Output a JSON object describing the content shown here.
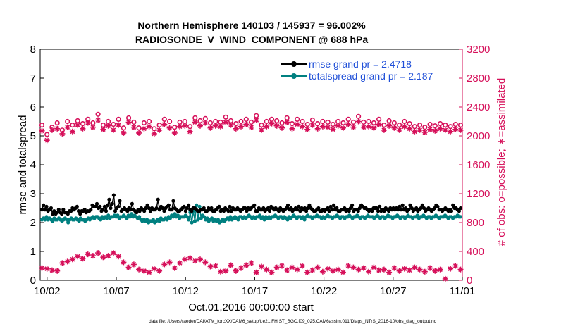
{
  "chart_data": {
    "type": "line",
    "title": [
      "Northern Hemisphere 140103 / 145937 = 96.002%",
      "RADIOSONDE_V_WIND_COMPONENT @ 688 hPa"
    ],
    "xlabel": "Oct.01,2016 00:00:00 start",
    "ylabel": "rmse and totalspread",
    "y2label": "# of obs: o=possible; ∗=assimilated",
    "footnote": "data file: /Users/raeder/DAI/ATM_forcXX/CAM6_setup/f.e21.FHIST_BGC.f09_025.CAM6assim.011/Diags_NTrS_2016-10/obs_diag_output.nc",
    "xlim": [
      1.5,
      32
    ],
    "ylim": [
      0,
      8
    ],
    "y2lim": [
      0,
      3200
    ],
    "xticks": [
      2,
      7,
      12,
      17,
      22,
      27,
      32
    ],
    "xticklabels": [
      "10/02",
      "10/07",
      "10/12",
      "10/17",
      "10/22",
      "10/27",
      "11/01"
    ],
    "yticks": [
      0,
      1,
      2,
      3,
      4,
      5,
      6,
      7,
      8
    ],
    "y2ticks": [
      0,
      400,
      800,
      1200,
      1600,
      2000,
      2400,
      2800,
      3200
    ],
    "legend_position": "top-right",
    "grid": false,
    "colors": {
      "rmse": "#000000",
      "spread": "#008080",
      "obs": "#d6105a",
      "legend_text": "#1f4fd8"
    },
    "series": [
      {
        "name": "rmse grand pr = 2.4718",
        "axis": "left",
        "marker": "filled-circle",
        "values": [
          2.45,
          2.6,
          2.45,
          2.55,
          2.4,
          2.45,
          2.5,
          2.3,
          2.4,
          2.3,
          2.35,
          2.45,
          2.35,
          2.3,
          2.45,
          2.35,
          2.35,
          2.3,
          2.4,
          2.4,
          2.5,
          2.45,
          2.5,
          2.55,
          2.4,
          2.3,
          2.4,
          2.4,
          2.45,
          2.35,
          2.4,
          2.4,
          2.45,
          2.6,
          2.55,
          2.55,
          2.65,
          2.5,
          2.55,
          2.4,
          2.45,
          2.55,
          2.4,
          2.6,
          2.8,
          2.5,
          2.65,
          2.95,
          2.4,
          2.5,
          2.55,
          2.75,
          2.4,
          2.45,
          2.5,
          2.45,
          2.4,
          2.5,
          2.45,
          2.65,
          2.45,
          2.4,
          2.35,
          2.45,
          2.4,
          2.5,
          2.45,
          2.4,
          2.5,
          2.6,
          2.5,
          2.4,
          2.5,
          2.45,
          2.45,
          2.5,
          2.8,
          2.45,
          2.55,
          2.5,
          2.4,
          2.5,
          2.55,
          2.6,
          2.45,
          2.45,
          2.75,
          2.5,
          2.45,
          2.4,
          2.4,
          2.45,
          2.5,
          2.55,
          2.4,
          2.5,
          2.6,
          2.45,
          2.4,
          2.5,
          2.5,
          2.45,
          2.4,
          2.4,
          2.45,
          2.45,
          2.5,
          2.4,
          2.4,
          2.5,
          2.45,
          2.5,
          2.4,
          2.4,
          2.45,
          2.5,
          2.55,
          2.4,
          2.45,
          2.4,
          2.5,
          2.45,
          2.4,
          2.55,
          2.4,
          2.5,
          2.45,
          2.45,
          2.5,
          2.45,
          2.4,
          2.45,
          2.5,
          2.5,
          2.4,
          2.5,
          2.45,
          2.5,
          2.55,
          2.6,
          2.4,
          2.4,
          2.5,
          2.45,
          2.45,
          2.5,
          2.4,
          2.45,
          2.5,
          2.4,
          2.55,
          2.5,
          2.45,
          2.5,
          2.45,
          2.4,
          2.5,
          2.45,
          2.4,
          2.45,
          2.5,
          2.6,
          2.45,
          2.5,
          2.4,
          2.45,
          2.5,
          2.45,
          2.55,
          2.4,
          2.5,
          2.45,
          2.5,
          2.4,
          2.5,
          2.6,
          2.5,
          2.45,
          2.4,
          2.4,
          2.45,
          2.5,
          2.4,
          2.4,
          2.45,
          2.4,
          2.45,
          2.5,
          2.4,
          2.55,
          2.45,
          2.6,
          2.45,
          2.5,
          2.4,
          2.4,
          2.45,
          2.45,
          2.5,
          2.4,
          2.45,
          2.4,
          2.5,
          2.6,
          2.4,
          2.45,
          2.45,
          2.4,
          2.5,
          2.6,
          2.55,
          2.5,
          2.5,
          2.45,
          2.4,
          2.45,
          2.4,
          2.5,
          2.5,
          2.5,
          2.4,
          2.55,
          2.4,
          2.45,
          2.4,
          2.5,
          2.45,
          2.4,
          2.5,
          2.45,
          2.5,
          2.45,
          2.5,
          2.45,
          2.55,
          2.45,
          2.6,
          2.45,
          2.5,
          2.4,
          2.45,
          2.6,
          2.5,
          2.4,
          2.45,
          2.5,
          2.4,
          2.45,
          2.5,
          2.6,
          2.5,
          2.4,
          2.45,
          2.5,
          2.45,
          2.4,
          2.45,
          2.5,
          2.6,
          2.55,
          2.45,
          2.45,
          2.4,
          2.45,
          2.5,
          2.45,
          2.4,
          2.45,
          2.4,
          2.6,
          2.5,
          2.5,
          2.45,
          2.4,
          2.5
        ]
      },
      {
        "name": "totalspread grand pr = 2.187",
        "axis": "left",
        "marker": "filled-circle",
        "values": [
          2.1,
          2.15,
          2.1,
          2.2,
          2.1,
          2.15,
          2.1,
          2.05,
          2.15,
          2.1,
          2.1,
          2.15,
          2.1,
          2.05,
          2.1,
          2.15,
          2.1,
          2.0,
          2.1,
          2.15,
          2.1,
          2.1,
          2.15,
          2.1,
          2.05,
          2.15,
          2.1,
          2.1,
          2.05,
          2.1,
          2.15,
          2.1,
          2.15,
          2.2,
          2.15,
          2.2,
          2.2,
          2.15,
          2.1,
          2.2,
          2.15,
          2.2,
          2.15,
          2.25,
          2.15,
          2.2,
          2.2,
          2.25,
          2.2,
          2.25,
          2.15,
          2.2,
          2.2,
          2.25,
          2.2,
          2.15,
          2.25,
          2.2,
          2.3,
          2.2,
          2.25,
          2.2,
          2.15,
          2.2,
          2.1,
          2.05,
          2.1,
          2.05,
          2.1,
          2.0,
          2.05,
          2.05,
          2.1,
          2.0,
          2.05,
          2.1,
          2.05,
          2.15,
          2.1,
          2.1,
          2.15,
          2.1,
          2.2,
          2.15,
          2.25,
          2.2,
          2.3,
          2.2,
          2.25,
          2.15,
          2.2,
          2.2,
          2.2,
          2.25,
          2.2,
          2.1,
          2.35,
          2.0,
          2.4,
          2.05,
          2.6,
          2.1,
          2.55,
          2.15,
          2.25,
          2.2,
          2.1,
          2.15,
          2.05,
          2.1,
          2.15,
          2.05,
          2.1,
          2.05,
          2.1,
          2.0,
          2.05,
          2.1,
          2.05,
          2.1,
          2.15,
          2.1,
          2.2,
          2.1,
          2.15,
          2.2,
          2.15,
          2.1,
          2.2,
          2.2,
          2.15,
          2.2,
          2.15,
          2.2,
          2.25,
          2.2,
          2.15,
          2.2,
          2.15,
          2.2,
          2.2,
          2.25,
          2.15,
          2.2,
          2.1,
          2.2,
          2.15,
          2.2,
          2.15,
          2.2,
          2.2,
          2.25,
          2.2,
          2.15,
          2.2,
          2.2,
          2.15,
          2.2,
          2.15,
          2.1,
          2.2,
          2.15,
          2.2,
          2.25,
          2.2,
          2.15,
          2.2,
          2.2,
          2.15,
          2.2,
          2.1,
          2.2,
          2.25,
          2.2,
          2.2,
          2.15,
          2.2,
          2.2,
          2.25,
          2.2,
          2.2,
          2.15,
          2.2,
          2.15,
          2.2,
          2.25,
          2.2,
          2.2,
          2.15,
          2.2,
          2.2,
          2.25,
          2.2,
          2.15,
          2.2,
          2.2,
          2.15,
          2.2,
          2.2,
          2.25,
          2.2,
          2.15,
          2.2,
          2.2,
          2.25,
          2.2,
          2.15,
          2.2,
          2.2,
          2.15,
          2.2,
          2.25,
          2.2,
          2.2,
          2.2,
          2.15,
          2.2,
          2.25,
          2.2,
          2.15,
          2.2,
          2.2,
          2.15,
          2.2,
          2.25,
          2.2,
          2.2,
          2.15,
          2.2,
          2.2,
          2.25,
          2.2,
          2.15,
          2.2,
          2.2,
          2.15,
          2.2,
          2.25,
          2.2,
          2.2,
          2.15,
          2.2,
          2.2,
          2.25,
          2.15,
          2.2,
          2.2,
          2.25,
          2.2,
          2.15,
          2.2,
          2.2,
          2.15,
          2.2,
          2.2,
          2.25,
          2.2,
          2.15,
          2.2,
          2.2,
          2.2,
          2.25,
          2.2,
          2.15,
          2.2,
          2.2,
          2.15,
          2.2,
          2.2,
          2.25,
          2.2,
          2.2
        ]
      },
      {
        "name": "possible",
        "axis": "right",
        "marker": "open-circle",
        "values": [
          2150,
          2020,
          2120,
          2180,
          2080,
          2200,
          2150,
          2210,
          2170,
          2230,
          2180,
          2300,
          2150,
          2200,
          2160,
          2230,
          2110,
          2250,
          2190,
          2110,
          2180,
          2200,
          2100,
          2150,
          2230,
          2200,
          2120,
          2190,
          2200,
          2130,
          2250,
          2210,
          2240,
          2180,
          2200,
          2190,
          2260,
          2210,
          2170,
          2200,
          2230,
          2190,
          2280,
          2150,
          2200,
          2230,
          2210,
          2180,
          2250,
          2170,
          2230,
          2200,
          2160,
          2220,
          2170,
          2200,
          2190,
          2160,
          2200,
          2180,
          2230,
          2190,
          2270,
          2190,
          2200,
          2180,
          2230,
          2150,
          2210,
          2180,
          2150,
          2200,
          2170,
          2130,
          2150,
          2120,
          2160,
          2140,
          2170,
          2150,
          2130,
          2160,
          2150
        ]
      },
      {
        "name": "assimilated",
        "axis": "right",
        "marker": "asterisk",
        "values": [
          2070,
          1940,
          2080,
          2100,
          2030,
          2120,
          2060,
          2150,
          2100,
          2180,
          2120,
          2220,
          2090,
          2140,
          2080,
          2150,
          2040,
          2190,
          2120,
          2040,
          2100,
          2130,
          2030,
          2080,
          2160,
          2110,
          2040,
          2130,
          2140,
          2060,
          2190,
          2140,
          2180,
          2110,
          2140,
          2130,
          2190,
          2150,
          2100,
          2130,
          2160,
          2120,
          2220,
          2080,
          2130,
          2170,
          2140,
          2110,
          2190,
          2100,
          2160,
          2130,
          2090,
          2150,
          2100,
          2130,
          2120,
          2090,
          2140,
          2110,
          2160,
          2120,
          2200,
          2120,
          2130,
          2110,
          2160,
          2080,
          2140,
          2110,
          2080,
          2130,
          2100,
          2060,
          2080,
          2050,
          2090,
          2070,
          2100,
          2080,
          2060,
          2090,
          2080
        ],
        "lower_values": [
          170,
          160,
          140,
          130,
          240,
          260,
          290,
          330,
          300,
          360,
          340,
          380,
          320,
          340,
          380,
          330,
          250,
          180,
          220,
          150,
          130,
          110,
          160,
          130,
          220,
          250,
          170,
          240,
          290,
          310,
          270,
          290,
          250,
          190,
          200,
          120,
          130,
          210,
          130,
          170,
          210,
          240,
          110,
          190,
          150,
          110,
          180,
          200,
          140,
          180,
          150,
          200,
          110,
          140,
          180,
          120,
          160,
          130,
          150,
          110,
          200,
          180,
          150,
          170,
          120,
          180,
          140,
          150,
          110,
          170,
          130,
          160,
          140,
          180,
          150,
          120,
          170,
          130,
          150,
          20,
          160,
          200,
          150
        ]
      }
    ]
  }
}
